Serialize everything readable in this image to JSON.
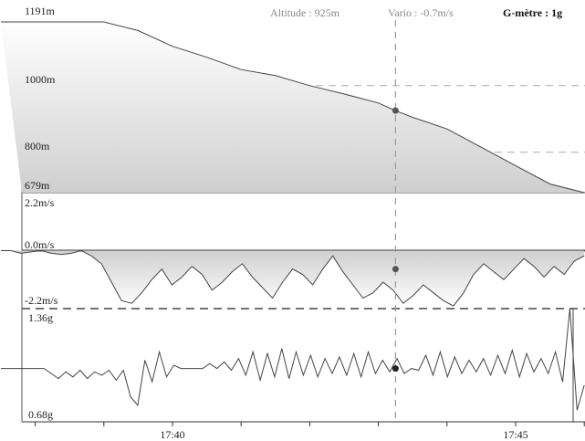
{
  "header": {
    "altitude_readout": "Altitude : 925m",
    "vario_readout": "Vario : -0.7m/s",
    "gmeter_readout": "G-mètre : 1g"
  },
  "colors": {
    "line": "#444444",
    "fill_top": "#ffffff",
    "fill_bottom": "#cfcfcf",
    "grid": "#aaaaaa",
    "cursor": "#9a9a9a",
    "marker": "#555555",
    "marker_dark": "#222222"
  },
  "chart_data": [
    {
      "type": "area",
      "name_hidden": "",
      "ylabel": "",
      "y_labels": [
        "1191m",
        "1000m",
        "800m",
        "679m"
      ],
      "ylim": [
        679,
        1191
      ],
      "gridlines": [
        1000,
        800
      ],
      "x": [
        "17:37:30",
        "17:38:30",
        "17:39:00",
        "17:39:30",
        "17:40:00",
        "17:40:30",
        "17:41:00",
        "17:41:30",
        "17:42:00",
        "17:42:30",
        "17:43:00",
        "17:43:15",
        "17:43:30",
        "17:44:00",
        "17:44:30",
        "17:45:00",
        "17:45:30",
        "17:46:00"
      ],
      "values": [
        1191,
        1191,
        1191,
        1165,
        1118,
        1085,
        1048,
        1030,
        1000,
        975,
        948,
        925,
        905,
        870,
        815,
        760,
        705,
        679
      ],
      "cursor_value": 925
    },
    {
      "type": "area",
      "y_labels": [
        "2.2m/s",
        "0.0m/s",
        "-2.2m/s"
      ],
      "ylim": [
        -2.2,
        2.2
      ],
      "x_start": "17:37:30",
      "x_end": "17:46:00",
      "values": [
        0.0,
        0.0,
        -0.1,
        -0.05,
        0.0,
        -0.1,
        -0.15,
        -0.1,
        0.0,
        -0.2,
        -0.5,
        -1.2,
        -1.9,
        -2.0,
        -1.6,
        -1.1,
        -0.7,
        -1.3,
        -1.0,
        -0.6,
        -0.9,
        -1.5,
        -1.2,
        -0.8,
        -0.5,
        -1.0,
        -1.4,
        -1.8,
        -1.2,
        -0.7,
        -0.9,
        -1.3,
        -0.7,
        -0.2,
        -0.8,
        -1.3,
        -1.8,
        -1.6,
        -1.2,
        -1.5,
        -2.0,
        -1.7,
        -1.3,
        -1.6,
        -1.9,
        -2.1,
        -1.6,
        -0.9,
        -0.5,
        -0.8,
        -1.1,
        -0.7,
        -0.3,
        -0.6,
        -1.0,
        -0.6,
        -0.9,
        -0.4,
        -0.2
      ],
      "cursor_value": -0.7
    },
    {
      "type": "line",
      "y_labels": [
        "1.36g",
        "0.68g"
      ],
      "ylim": [
        0.68,
        1.36
      ],
      "x_start": "17:37:30",
      "x_end": "17:46:00",
      "values": [
        1.0,
        1.0,
        1.0,
        1.0,
        1.0,
        1.0,
        1.0,
        0.97,
        0.94,
        0.98,
        0.95,
        0.99,
        0.94,
        0.98,
        0.96,
        0.99,
        0.93,
        0.99,
        0.83,
        0.78,
        1.05,
        0.92,
        1.1,
        0.95,
        1.02,
        1.0,
        1.0,
        1.0,
        1.0,
        1.03,
        1.0,
        1.04,
        0.99,
        1.06,
        0.96,
        1.1,
        0.93,
        1.09,
        0.95,
        1.12,
        0.94,
        1.1,
        0.96,
        1.08,
        0.95,
        1.06,
        0.97,
        1.07,
        0.96,
        1.09,
        0.95,
        1.1,
        0.97,
        1.05,
        0.98,
        1.06,
        0.97,
        1.0,
        0.99,
        1.08,
        0.96,
        1.1,
        0.95,
        1.07,
        0.97,
        1.05,
        0.98,
        1.06,
        0.96,
        1.08,
        0.97,
        1.11,
        0.95,
        1.09,
        0.98,
        1.06,
        0.97,
        1.1,
        0.92,
        1.36,
        0.75,
        0.9
      ],
      "cursor_value": 1.0
    }
  ],
  "x_axis": {
    "start": "17:37:30",
    "end": "17:46:00",
    "tick_labels": [
      {
        "time": "17:40:00",
        "label": "17:40"
      },
      {
        "time": "17:45:00",
        "label": "17:45"
      }
    ],
    "minor_ticks": [
      "17:38:00",
      "17:39:00",
      "17:40:00",
      "17:41:00",
      "17:42:00",
      "17:43:00",
      "17:44:00",
      "17:45:00",
      "17:46:00"
    ],
    "cursor_time": "17:43:15"
  }
}
